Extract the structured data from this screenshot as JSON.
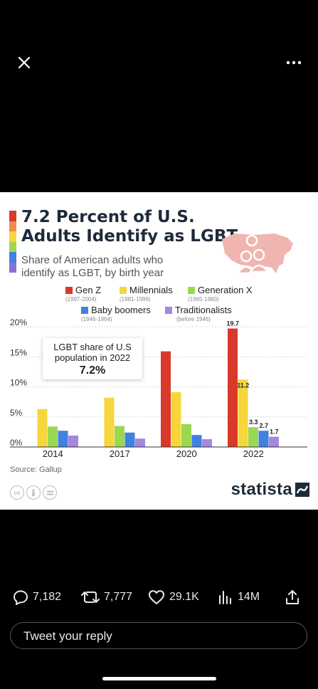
{
  "chart_data": {
    "type": "bar",
    "title": "7.2 Percent of U.S. Adults Identify as LGBT",
    "subtitle": "Share of American adults who identify as LGBT, by birth year",
    "categories": [
      "2014",
      "2017",
      "2020",
      "2022"
    ],
    "series": [
      {
        "name": "Gen Z",
        "years": "(1997-2004)",
        "color": "#d9392a",
        "values": [
          null,
          null,
          15.9,
          19.7
        ]
      },
      {
        "name": "Millennials",
        "years": "(1981-1996)",
        "color": "#f5d63b",
        "values": [
          6.3,
          8.2,
          9.1,
          11.2
        ]
      },
      {
        "name": "Generation X",
        "years": "(1965-1980)",
        "color": "#9bd851",
        "values": [
          3.4,
          3.5,
          3.8,
          3.3
        ]
      },
      {
        "name": "Baby boomers",
        "years": "(1946-1964)",
        "color": "#3f82e0",
        "values": [
          2.7,
          2.4,
          2.0,
          2.7
        ]
      },
      {
        "name": "Traditionalists",
        "years": "(before 1946)",
        "color": "#a587e0",
        "values": [
          1.9,
          1.4,
          1.3,
          1.7
        ]
      }
    ],
    "data_labels": {
      "2022": [
        "19.7",
        "11.2",
        "3.3",
        "2.7",
        "1.7"
      ]
    },
    "yticks": [
      0,
      5,
      10,
      15,
      20
    ],
    "ytick_labels": [
      "0%",
      "5%",
      "10%",
      "15%",
      "20%"
    ],
    "ylim": [
      0,
      20
    ],
    "grid": true,
    "annotation": {
      "line1": "LGBT share of U.S population in 2022",
      "value": "7.2%"
    },
    "source": "Source: Gallup",
    "brand": "statista"
  },
  "tweet_actions": {
    "replies": "7,182",
    "retweets": "7,777",
    "likes": "29.1K",
    "views": "14M"
  },
  "reply_box": {
    "placeholder": "Tweet your reply"
  },
  "colors": {
    "background": "#000000",
    "title_stripe": [
      "#d9392a",
      "#f0894a",
      "#f5d63b",
      "#9bd851",
      "#3f82e0",
      "#8a6fd8"
    ]
  }
}
